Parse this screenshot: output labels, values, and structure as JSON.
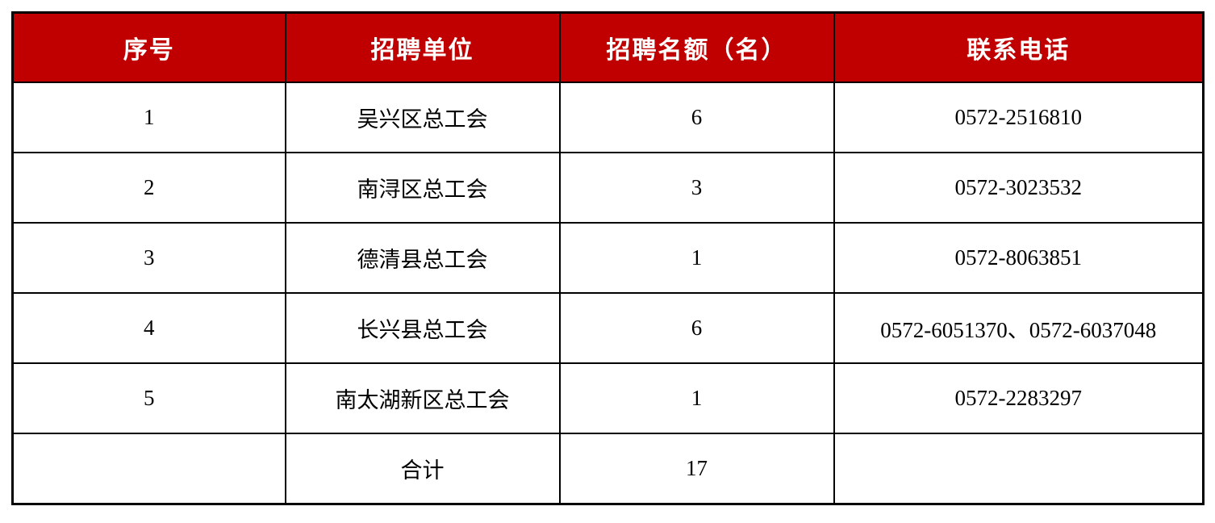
{
  "table": {
    "name": "recruitment-contact-table",
    "columns": [
      "序号",
      "招聘单位",
      "招聘名额（名）",
      "联系电话"
    ],
    "rows": [
      {
        "index": "1",
        "unit": "吴兴区总工会",
        "quota": "6",
        "phone": "0572-2516810"
      },
      {
        "index": "2",
        "unit": "南浔区总工会",
        "quota": "3",
        "phone": "0572-3023532"
      },
      {
        "index": "3",
        "unit": "德清县总工会",
        "quota": "1",
        "phone": "0572-8063851"
      },
      {
        "index": "4",
        "unit": "长兴县总工会",
        "quota": "6",
        "phone": "0572-6051370、0572-6037048"
      },
      {
        "index": "5",
        "unit": "南太湖新区总工会",
        "quota": "1",
        "phone": "0572-2283297"
      },
      {
        "index": "",
        "unit": "合计",
        "quota": "17",
        "phone": ""
      }
    ],
    "colors": {
      "header_bg": "#c00000",
      "header_text": "#ffffff",
      "border": "#000000",
      "body_text": "#000000",
      "page_bg": "#ffffff"
    }
  }
}
